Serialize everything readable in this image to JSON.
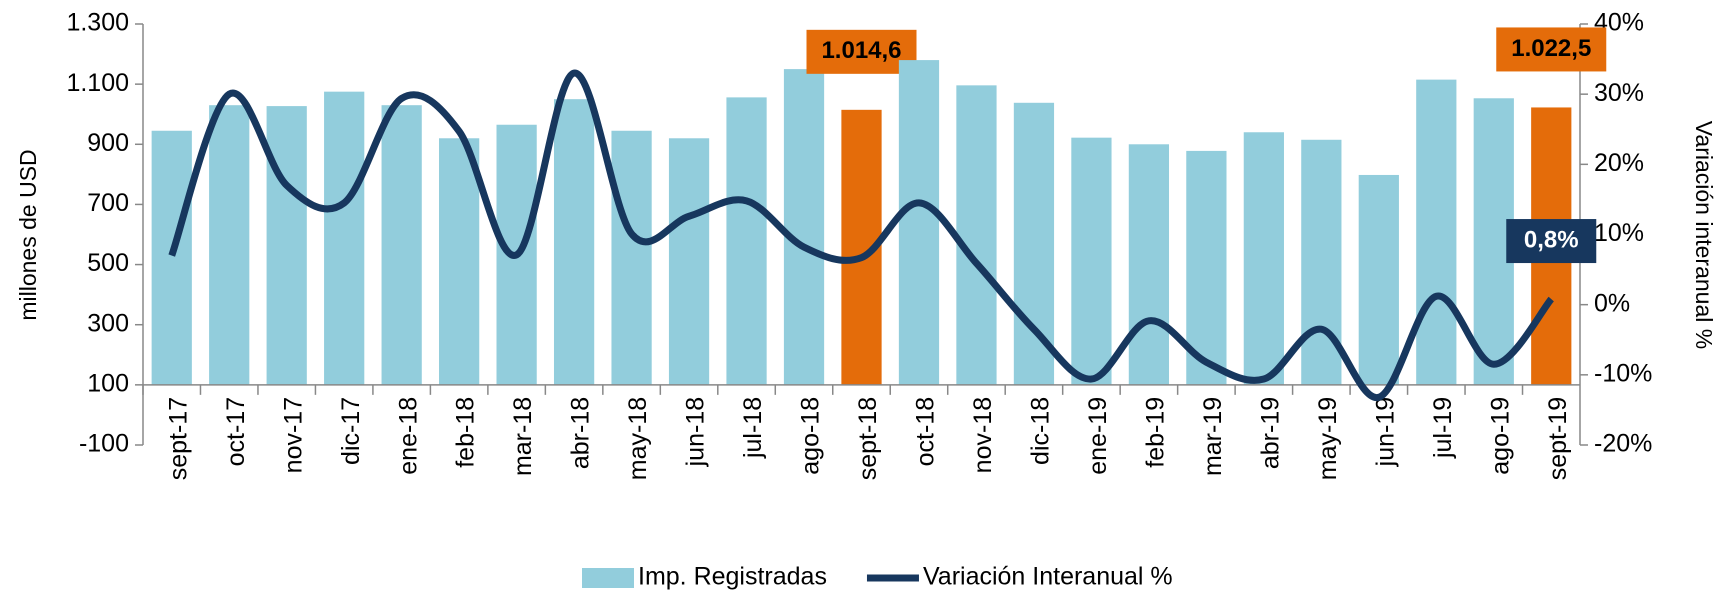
{
  "chart_data": {
    "type": "bar_line",
    "categories": [
      "sept-17",
      "oct-17",
      "nov-17",
      "dic-17",
      "ene-18",
      "feb-18",
      "mar-18",
      "abr-18",
      "may-18",
      "jun-18",
      "jul-18",
      "ago-18",
      "sept-18",
      "oct-18",
      "nov-18",
      "dic-18",
      "ene-19",
      "feb-19",
      "mar-19",
      "abr-19",
      "may-19",
      "jun-19",
      "jul-19",
      "ago-19",
      "sept-19"
    ],
    "series": [
      {
        "name": "Imp. Registradas",
        "type": "bar",
        "color": "#92cddc",
        "colors": [
          "#92cddc",
          "#92cddc",
          "#92cddc",
          "#92cddc",
          "#92cddc",
          "#92cddc",
          "#92cddc",
          "#92cddc",
          "#92cddc",
          "#92cddc",
          "#92cddc",
          "#92cddc",
          "#e46c0a",
          "#92cddc",
          "#92cddc",
          "#92cddc",
          "#92cddc",
          "#92cddc",
          "#92cddc",
          "#92cddc",
          "#92cddc",
          "#92cddc",
          "#92cddc",
          "#92cddc",
          "#e46c0a"
        ],
        "values": [
          945,
          1030,
          1027,
          1075,
          1030,
          920,
          965,
          1050,
          945,
          920,
          1056,
          1150,
          1014.6,
          1180,
          1096,
          1038,
          922,
          900,
          878,
          940,
          915,
          798,
          1115,
          1053,
          1022.5
        ],
        "value_labels": [
          null,
          null,
          null,
          null,
          null,
          null,
          null,
          null,
          null,
          null,
          null,
          null,
          "1.014,6",
          null,
          null,
          null,
          null,
          null,
          null,
          null,
          null,
          null,
          null,
          null,
          "1.022,5"
        ]
      },
      {
        "name": "Variación Interanual %",
        "type": "line",
        "axis": "y2",
        "color": "#17375e",
        "values": [
          7,
          30,
          17,
          14.5,
          29.4,
          24.7,
          7.1,
          33,
          10.1,
          12.6,
          14.8,
          8.2,
          6.7,
          14.5,
          5.9,
          -3.5,
          -10.6,
          -2.3,
          -8.2,
          -10.6,
          -3.5,
          -13.2,
          1.2,
          -8.5,
          0.8
        ],
        "value_labels": [
          null,
          null,
          null,
          null,
          null,
          null,
          null,
          null,
          null,
          null,
          null,
          null,
          null,
          null,
          null,
          null,
          null,
          null,
          null,
          null,
          null,
          null,
          null,
          null,
          "0,8%"
        ]
      }
    ],
    "ylabel": "millones de USD",
    "y2label": "Variación interanual %",
    "ylim": [
      -100,
      1300
    ],
    "yticks": [
      -100,
      100,
      300,
      500,
      700,
      900,
      {
        "value": 1100,
        "label": "1.100"
      },
      {
        "value": 1300,
        "label": "1.300"
      }
    ],
    "y2lim": [
      -20,
      40
    ],
    "y2ticks": [
      {
        "value": -20,
        "label": "-20%"
      },
      {
        "value": -10,
        "label": "-10%"
      },
      {
        "value": 0,
        "label": "0%"
      },
      {
        "value": 10,
        "label": "10%"
      },
      {
        "value": 20,
        "label": "20%"
      },
      {
        "value": 30,
        "label": "30%"
      },
      {
        "value": 40,
        "label": "40%"
      }
    ],
    "xaxis_crosses": 100,
    "legend": "bottom"
  }
}
